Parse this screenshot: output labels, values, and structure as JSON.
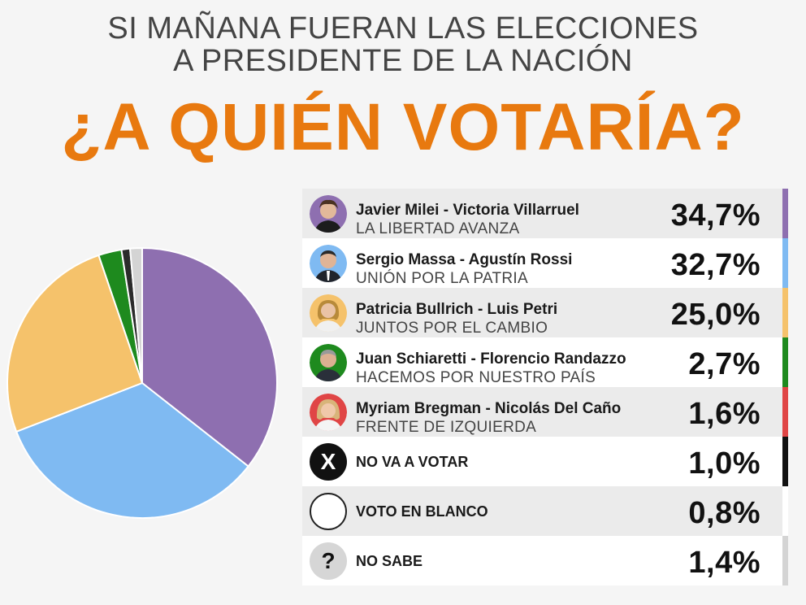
{
  "header": {
    "subtitle_line1": "SI MAÑANA FUERAN LAS ELECCIONES",
    "subtitle_line2": "A PRESIDENTE DE LA NACIÓN",
    "title": "¿A QUIÉN VOTARÍA?"
  },
  "colors": {
    "title": "#e8790f",
    "milei": "#8e6fb0",
    "massa": "#7fbaf2",
    "bullrich": "#f5c26b",
    "schiaretti": "#1e8a1e",
    "bregman": "#e04545",
    "no_vota": "#111111",
    "blanco": "#ffffff",
    "no_sabe": "#d4d4d4"
  },
  "chart_data": {
    "type": "pie",
    "title": "¿A QUIÉN VOTARÍA?",
    "categories": [
      "Javier Milei - Victoria Villarruel",
      "Sergio Massa - Agustín Rossi",
      "Patricia Bullrich - Luis Petri",
      "Juan Schiaretti - Florencio Randazzo",
      "Myriam Bregman - Nicolás Del Caño",
      "NO VA A VOTAR",
      "VOTO EN BLANCO",
      "NO SABE"
    ],
    "values": [
      34.7,
      32.7,
      25.0,
      2.7,
      1.6,
      1.0,
      0.8,
      1.4
    ],
    "pie_order": [
      0,
      1,
      2,
      3,
      5,
      7
    ],
    "pie_colors": [
      "#8e6fb0",
      "#7fbaf2",
      "#f5c26b",
      "#1e8a1e",
      "#2b2b2b",
      "#d4d4d4"
    ],
    "legend_position": "right"
  },
  "rows": [
    {
      "names": "Javier Milei - Victoria Villarruel",
      "party": "LA LIBERTAD AVANZA",
      "pct": "34,7%",
      "color": "#8e6fb0",
      "avatar": "milei-photo"
    },
    {
      "names": "Sergio Massa - Agustín Rossi",
      "party": "UNIÓN POR LA PATRIA",
      "pct": "32,7%",
      "color": "#7fbaf2",
      "avatar": "massa-photo"
    },
    {
      "names": "Patricia Bullrich - Luis Petri",
      "party": "JUNTOS POR EL CAMBIO",
      "pct": "25,0%",
      "color": "#f5c26b",
      "avatar": "bullrich-photo"
    },
    {
      "names": "Juan Schiaretti - Florencio Randazzo",
      "party": "HACEMOS POR NUESTRO PAÍS",
      "pct": "2,7%",
      "color": "#1e8a1e",
      "avatar": "schiaretti-photo"
    },
    {
      "names": "Myriam Bregman - Nicolás Del Caño",
      "party": "FRENTE DE IZQUIERDA",
      "pct": "1,6%",
      "color": "#e04545",
      "avatar": "bregman-photo"
    },
    {
      "label": "NO VA A VOTAR",
      "symbol": "X",
      "pct": "1,0%",
      "color": "#111111",
      "icon": "x-circle-icon"
    },
    {
      "label": "VOTO EN BLANCO",
      "symbol": "",
      "pct": "0,8%",
      "color": "#ffffff",
      "icon": "empty-circle-icon"
    },
    {
      "label": "NO SABE",
      "symbol": "?",
      "pct": "1,4%",
      "color": "#d4d4d4",
      "icon": "question-circle-icon"
    }
  ]
}
